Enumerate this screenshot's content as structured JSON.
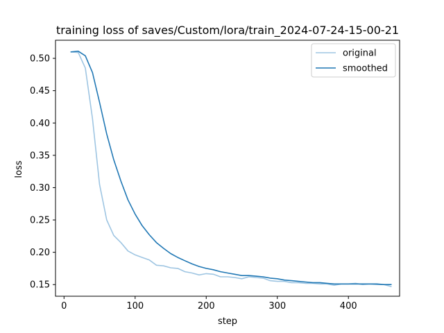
{
  "chart_data": {
    "type": "line",
    "title": "training loss of saves/Custom/lora/train_2024-07-24-15-00-21",
    "xlabel": "step",
    "ylabel": "loss",
    "xlim": [
      -12,
      472
    ],
    "ylim": [
      0.132,
      0.528
    ],
    "xticks": [
      0,
      100,
      200,
      300,
      400
    ],
    "yticks": [
      0.15,
      0.2,
      0.25,
      0.3,
      0.35,
      0.4,
      0.45,
      0.5
    ],
    "ytick_labels": [
      "0.15",
      "0.20",
      "0.25",
      "0.30",
      "0.35",
      "0.40",
      "0.45",
      "0.50"
    ],
    "grid": false,
    "legend_position": "top-right",
    "colors": {
      "original": "#9ec5e2",
      "smoothed": "#1f77b4"
    },
    "series": [
      {
        "name": "original",
        "x": [
          10,
          20,
          30,
          40,
          50,
          60,
          70,
          80,
          90,
          100,
          110,
          120,
          130,
          140,
          150,
          160,
          170,
          180,
          190,
          200,
          210,
          220,
          230,
          240,
          250,
          260,
          270,
          280,
          290,
          300,
          310,
          320,
          330,
          340,
          350,
          360,
          370,
          380,
          390,
          400,
          410,
          420,
          430,
          440,
          450,
          460
        ],
        "y": [
          0.51,
          0.509,
          0.485,
          0.407,
          0.305,
          0.25,
          0.226,
          0.215,
          0.202,
          0.196,
          0.192,
          0.188,
          0.18,
          0.179,
          0.176,
          0.175,
          0.17,
          0.168,
          0.165,
          0.167,
          0.166,
          0.162,
          0.162,
          0.161,
          0.159,
          0.162,
          0.161,
          0.16,
          0.156,
          0.155,
          0.155,
          0.153,
          0.153,
          0.152,
          0.152,
          0.151,
          0.151,
          0.149,
          0.151,
          0.151,
          0.152,
          0.15,
          0.151,
          0.15,
          0.15,
          0.147
        ]
      },
      {
        "name": "smoothed",
        "x": [
          10,
          20,
          30,
          40,
          50,
          60,
          70,
          80,
          90,
          100,
          110,
          120,
          130,
          140,
          150,
          160,
          170,
          180,
          190,
          200,
          210,
          220,
          230,
          240,
          250,
          260,
          270,
          280,
          290,
          300,
          310,
          320,
          330,
          340,
          350,
          360,
          370,
          380,
          390,
          400,
          410,
          420,
          430,
          440,
          450,
          460
        ],
        "y": [
          0.51,
          0.511,
          0.504,
          0.478,
          0.432,
          0.383,
          0.343,
          0.31,
          0.281,
          0.259,
          0.241,
          0.227,
          0.215,
          0.206,
          0.198,
          0.192,
          0.187,
          0.182,
          0.178,
          0.175,
          0.173,
          0.17,
          0.168,
          0.166,
          0.164,
          0.164,
          0.163,
          0.162,
          0.16,
          0.159,
          0.157,
          0.156,
          0.155,
          0.154,
          0.153,
          0.153,
          0.152,
          0.151,
          0.151,
          0.151,
          0.151,
          0.151,
          0.151,
          0.151,
          0.15,
          0.15
        ]
      }
    ]
  }
}
